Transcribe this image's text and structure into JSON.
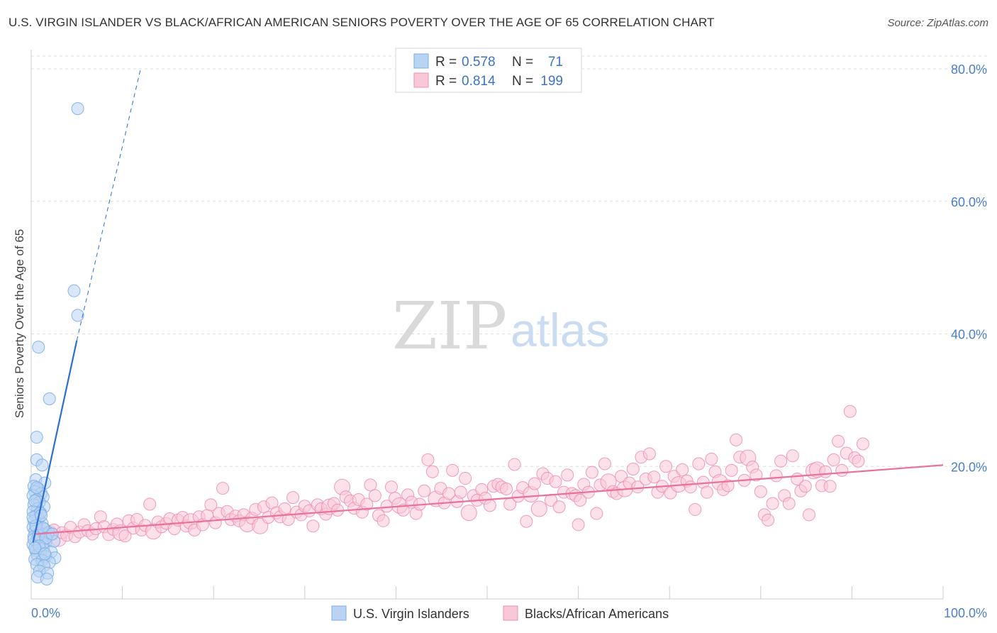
{
  "title": "U.S. VIRGIN ISLANDER VS BLACK/AFRICAN AMERICAN SENIORS POVERTY OVER THE AGE OF 65 CORRELATION CHART",
  "source": "Source: ZipAtlas.com",
  "watermark": {
    "zip": "ZIP",
    "atlas": "atlas"
  },
  "colors": {
    "blue": "#7aaee8",
    "blue_fill": "#b9d3f3",
    "blue_line": "#2a6fd0",
    "pink": "#f090b0",
    "pink_fill": "#f9c8d8",
    "pink_line": "#e8729a",
    "tick_text": "#4a7fcb",
    "grid": "#dddddd"
  },
  "legend": {
    "r_label": "R =",
    "n_label": "N =",
    "series": [
      {
        "r": "0.578",
        "n": "71"
      },
      {
        "r": "0.814",
        "n": "199"
      }
    ]
  },
  "chart_data": {
    "type": "scatter",
    "title": "U.S. VIRGIN ISLANDER VS BLACK/AFRICAN AMERICAN SENIORS POVERTY OVER THE AGE OF 65 CORRELATION CHART",
    "xlabel": "",
    "ylabel": "Seniors Poverty Over the Age of 65",
    "xlim": [
      0,
      100
    ],
    "ylim": [
      0,
      83
    ],
    "x_tick_labels": [
      "0.0%",
      "100.0%"
    ],
    "y_ticks": [
      20,
      40,
      60,
      80
    ],
    "y_tick_labels": [
      "20.0%",
      "40.0%",
      "60.0%",
      "80.0%"
    ],
    "grid": true,
    "legend_position": "top-center",
    "series": [
      {
        "name": "U.S. Virgin Islanders",
        "r": 0.578,
        "n": 71,
        "trend": {
          "x0": 0.2,
          "y0": 8.5,
          "x1": 5.0,
          "y1": 39.0,
          "dash_to_x": 12.0,
          "dash_to_y": 80.0
        },
        "points": [
          [
            5.1,
            74.0
          ],
          [
            4.7,
            46.5
          ],
          [
            5.1,
            42.8
          ],
          [
            0.8,
            38.0
          ],
          [
            2.0,
            30.2
          ],
          [
            0.6,
            24.4
          ],
          [
            0.6,
            21.0
          ],
          [
            1.2,
            20.2
          ],
          [
            0.5,
            18.0
          ],
          [
            1.5,
            17.5
          ],
          [
            0.3,
            17.0
          ],
          [
            0.8,
            16.6
          ],
          [
            0.4,
            16.2
          ],
          [
            1.1,
            15.9
          ],
          [
            0.2,
            15.6
          ],
          [
            1.3,
            15.4
          ],
          [
            0.6,
            15.0
          ],
          [
            0.9,
            14.6
          ],
          [
            0.3,
            14.2
          ],
          [
            1.4,
            13.9
          ],
          [
            0.7,
            13.6
          ],
          [
            0.2,
            13.2
          ],
          [
            1.0,
            12.9
          ],
          [
            0.5,
            12.5
          ],
          [
            0.8,
            12.1
          ],
          [
            0.3,
            11.8
          ],
          [
            1.2,
            11.4
          ],
          [
            0.6,
            11.1
          ],
          [
            0.2,
            10.8
          ],
          [
            1.5,
            10.5
          ],
          [
            0.4,
            10.2
          ],
          [
            0.9,
            9.9
          ],
          [
            1.8,
            9.7
          ],
          [
            0.3,
            9.4
          ],
          [
            1.1,
            9.1
          ],
          [
            0.6,
            8.8
          ],
          [
            1.6,
            8.5
          ],
          [
            2.5,
            8.7
          ],
          [
            0.2,
            8.2
          ],
          [
            0.8,
            7.9
          ],
          [
            1.3,
            7.6
          ],
          [
            0.5,
            7.3
          ],
          [
            2.2,
            7.1
          ],
          [
            1.0,
            6.9
          ],
          [
            0.7,
            6.6
          ],
          [
            1.6,
            6.4
          ],
          [
            2.6,
            6.2
          ],
          [
            0.4,
            6.0
          ],
          [
            1.2,
            5.8
          ],
          [
            2.0,
            5.5
          ],
          [
            0.6,
            5.2
          ],
          [
            1.4,
            5.0
          ],
          [
            0.9,
            4.2
          ],
          [
            1.8,
            3.9
          ],
          [
            0.7,
            3.3
          ],
          [
            1.7,
            3.0
          ],
          [
            0.3,
            9.0
          ],
          [
            1.9,
            10.0
          ],
          [
            0.5,
            11.0
          ],
          [
            1.0,
            13.0
          ],
          [
            0.4,
            14.8
          ],
          [
            0.8,
            9.6
          ],
          [
            1.3,
            10.7
          ],
          [
            0.2,
            12.3
          ],
          [
            1.6,
            9.2
          ],
          [
            0.9,
            8.0
          ],
          [
            2.3,
            9.8
          ],
          [
            0.6,
            16.8
          ],
          [
            1.1,
            12.6
          ],
          [
            0.4,
            7.7
          ],
          [
            1.5,
            6.8
          ]
        ]
      },
      {
        "name": "Blacks/African Americans",
        "r": 0.814,
        "n": 199,
        "trend": {
          "x0": 0.5,
          "y0": 9.8,
          "x1": 100.0,
          "y1": 20.2
        },
        "points": [
          [
            0.8,
            9.5
          ],
          [
            1.2,
            10.2
          ],
          [
            1.6,
            8.8
          ],
          [
            2.0,
            9.9
          ],
          [
            2.5,
            10.4
          ],
          [
            3.0,
            9.1
          ],
          [
            3.4,
            10.0
          ],
          [
            3.9,
            9.6
          ],
          [
            4.3,
            10.8
          ],
          [
            4.8,
            9.4
          ],
          [
            5.3,
            10.1
          ],
          [
            5.8,
            11.2
          ],
          [
            6.2,
            10.3
          ],
          [
            6.7,
            9.8
          ],
          [
            7.1,
            10.6
          ],
          [
            7.6,
            12.4
          ],
          [
            8.0,
            10.9
          ],
          [
            8.5,
            9.7
          ],
          [
            9.0,
            10.5
          ],
          [
            9.4,
            11.3
          ],
          [
            9.8,
            10.0
          ],
          [
            10.3,
            9.5
          ],
          [
            10.7,
            11.8
          ],
          [
            11.2,
            10.7
          ],
          [
            11.6,
            12.0
          ],
          [
            12.1,
            10.4
          ],
          [
            12.5,
            11.1
          ],
          [
            13.0,
            14.3
          ],
          [
            13.4,
            10.2
          ],
          [
            13.9,
            11.6
          ],
          [
            14.3,
            10.9
          ],
          [
            14.8,
            11.4
          ],
          [
            15.2,
            12.1
          ],
          [
            15.7,
            10.6
          ],
          [
            16.1,
            11.9
          ],
          [
            16.6,
            12.3
          ],
          [
            17.0,
            11.0
          ],
          [
            17.5,
            11.7
          ],
          [
            17.9,
            10.4
          ],
          [
            18.4,
            12.4
          ],
          [
            18.8,
            11.2
          ],
          [
            19.3,
            12.6
          ],
          [
            19.7,
            14.2
          ],
          [
            20.2,
            11.5
          ],
          [
            20.6,
            12.9
          ],
          [
            21.0,
            16.7
          ],
          [
            21.5,
            13.2
          ],
          [
            21.9,
            12.0
          ],
          [
            22.4,
            12.5
          ],
          [
            22.8,
            11.8
          ],
          [
            23.3,
            12.7
          ],
          [
            23.7,
            11.3
          ],
          [
            24.2,
            12.2
          ],
          [
            24.6,
            13.5
          ],
          [
            25.1,
            11.0
          ],
          [
            25.5,
            13.9
          ],
          [
            26.0,
            12.3
          ],
          [
            26.4,
            14.5
          ],
          [
            26.9,
            13.0
          ],
          [
            27.3,
            12.4
          ],
          [
            27.8,
            13.6
          ],
          [
            28.2,
            12.0
          ],
          [
            28.7,
            15.3
          ],
          [
            29.1,
            13.1
          ],
          [
            29.6,
            12.7
          ],
          [
            30.0,
            14.0
          ],
          [
            30.5,
            13.3
          ],
          [
            30.9,
            11.0
          ],
          [
            31.4,
            14.2
          ],
          [
            31.8,
            13.6
          ],
          [
            32.3,
            12.8
          ],
          [
            32.7,
            13.9
          ],
          [
            33.2,
            14.4
          ],
          [
            33.6,
            13.4
          ],
          [
            34.1,
            16.9
          ],
          [
            34.5,
            15.4
          ],
          [
            35.0,
            14.8
          ],
          [
            35.4,
            13.7
          ],
          [
            35.9,
            15.0
          ],
          [
            36.3,
            13.1
          ],
          [
            36.8,
            14.3
          ],
          [
            37.2,
            17.2
          ],
          [
            37.7,
            15.6
          ],
          [
            38.1,
            12.6
          ],
          [
            38.6,
            11.8
          ],
          [
            39.0,
            14.0
          ],
          [
            39.5,
            16.9
          ],
          [
            39.9,
            15.2
          ],
          [
            40.4,
            14.1
          ],
          [
            40.8,
            13.4
          ],
          [
            41.3,
            15.7
          ],
          [
            41.7,
            14.6
          ],
          [
            42.2,
            12.9
          ],
          [
            42.6,
            14.3
          ],
          [
            43.1,
            16.3
          ],
          [
            43.5,
            21.0
          ],
          [
            44.0,
            19.2
          ],
          [
            44.4,
            15.1
          ],
          [
            44.9,
            16.7
          ],
          [
            45.3,
            14.5
          ],
          [
            45.8,
            15.9
          ],
          [
            46.2,
            19.4
          ],
          [
            46.7,
            14.7
          ],
          [
            47.1,
            16.1
          ],
          [
            47.6,
            18.2
          ],
          [
            48.0,
            13.0
          ],
          [
            48.5,
            15.6
          ],
          [
            48.9,
            14.9
          ],
          [
            49.4,
            16.5
          ],
          [
            49.8,
            15.2
          ],
          [
            50.3,
            14.1
          ],
          [
            50.7,
            17.0
          ],
          [
            51.2,
            17.3
          ],
          [
            51.6,
            16.9
          ],
          [
            52.1,
            16.6
          ],
          [
            52.5,
            14.3
          ],
          [
            53.0,
            20.3
          ],
          [
            53.4,
            15.5
          ],
          [
            53.9,
            16.8
          ],
          [
            54.3,
            11.7
          ],
          [
            54.8,
            15.8
          ],
          [
            55.2,
            17.4
          ],
          [
            55.7,
            13.6
          ],
          [
            56.1,
            18.9
          ],
          [
            56.6,
            18.2
          ],
          [
            57.0,
            14.9
          ],
          [
            57.5,
            17.7
          ],
          [
            57.9,
            13.9
          ],
          [
            58.4,
            16.1
          ],
          [
            58.8,
            18.7
          ],
          [
            59.3,
            15.9
          ],
          [
            59.7,
            15.6
          ],
          [
            60.2,
            14.9
          ],
          [
            60.6,
            17.3
          ],
          [
            61.1,
            16.1
          ],
          [
            61.5,
            19.1
          ],
          [
            62.0,
            12.9
          ],
          [
            62.4,
            17.2
          ],
          [
            62.9,
            20.4
          ],
          [
            63.3,
            17.7
          ],
          [
            63.8,
            16.2
          ],
          [
            64.2,
            15.9
          ],
          [
            64.7,
            18.5
          ],
          [
            65.1,
            16.6
          ],
          [
            65.6,
            17.5
          ],
          [
            66.0,
            19.6
          ],
          [
            66.5,
            16.9
          ],
          [
            66.9,
            21.4
          ],
          [
            67.4,
            18.1
          ],
          [
            67.8,
            21.9
          ],
          [
            68.3,
            18.4
          ],
          [
            68.7,
            16.1
          ],
          [
            69.2,
            17.0
          ],
          [
            69.6,
            20.0
          ],
          [
            70.1,
            16.0
          ],
          [
            70.5,
            18.5
          ],
          [
            71.0,
            17.3
          ],
          [
            71.4,
            19.5
          ],
          [
            71.9,
            17.8
          ],
          [
            72.3,
            16.9
          ],
          [
            72.8,
            13.5
          ],
          [
            73.2,
            20.4
          ],
          [
            73.7,
            17.6
          ],
          [
            74.1,
            16.1
          ],
          [
            74.6,
            21.1
          ],
          [
            75.0,
            19.2
          ],
          [
            75.5,
            17.6
          ],
          [
            75.9,
            16.5
          ],
          [
            76.4,
            17.1
          ],
          [
            76.8,
            19.4
          ],
          [
            77.3,
            24.0
          ],
          [
            77.7,
            21.4
          ],
          [
            78.2,
            17.9
          ],
          [
            78.6,
            21.3
          ],
          [
            79.1,
            19.9
          ],
          [
            79.5,
            18.7
          ],
          [
            80.0,
            16.2
          ],
          [
            80.4,
            12.7
          ],
          [
            80.8,
            11.9
          ],
          [
            81.3,
            14.4
          ],
          [
            81.7,
            18.6
          ],
          [
            82.2,
            20.8
          ],
          [
            82.6,
            15.6
          ],
          [
            83.1,
            14.4
          ],
          [
            83.5,
            21.6
          ],
          [
            84.0,
            18.1
          ],
          [
            84.4,
            16.3
          ],
          [
            84.9,
            17.0
          ],
          [
            85.3,
            12.7
          ],
          [
            85.8,
            19.3
          ],
          [
            86.2,
            19.5
          ],
          [
            86.7,
            17.1
          ],
          [
            87.1,
            19.2
          ],
          [
            87.6,
            17.0
          ],
          [
            88.0,
            21.0
          ],
          [
            88.5,
            23.8
          ],
          [
            88.9,
            19.4
          ],
          [
            89.4,
            22.0
          ],
          [
            89.8,
            28.3
          ],
          [
            90.3,
            21.3
          ],
          [
            90.7,
            20.8
          ],
          [
            91.2,
            23.4
          ],
          [
            60.0,
            11.2
          ]
        ]
      }
    ]
  },
  "x_tick_count": 11
}
